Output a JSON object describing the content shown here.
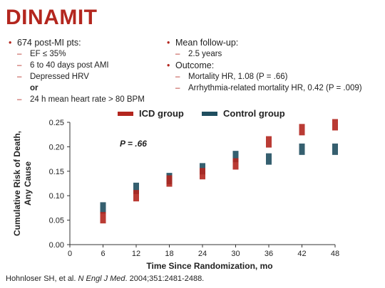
{
  "slide": {
    "title": "DINAMIT",
    "left_bullets": [
      {
        "level": 1,
        "text": "674 post-MI pts:"
      },
      {
        "level": 2,
        "text": "EF ≤ 35%"
      },
      {
        "level": 2,
        "text": "6 to 40 days post AMI"
      },
      {
        "level": 2,
        "text": "Depressed HRV"
      },
      {
        "level": "or",
        "text": "or"
      },
      {
        "level": 2,
        "text": "24 h mean heart rate > 80 BPM"
      }
    ],
    "right_bullets": [
      {
        "level": 1,
        "text": "Mean follow-up:"
      },
      {
        "level": 2,
        "text": "2.5 years"
      },
      {
        "level": 1,
        "text": "Outcome:"
      },
      {
        "level": 2,
        "text": "Mortality HR, 1.08 (P = .66)"
      },
      {
        "level": 2,
        "text": "Arrhythmia-related mortality HR, 0.42 (P = .009)"
      }
    ],
    "source": {
      "authors": "Hohnloser SH, et al. ",
      "journal": "N Engl J Med",
      "details": ". 2004;351:2481-2488."
    }
  },
  "colors": {
    "accent": "#b3261e",
    "icd": "#b3261e",
    "control": "#1f4e5f"
  },
  "chart_data": {
    "type": "line",
    "xlabel": "Time Since Randomization, mo",
    "ylabel_lines": [
      "Cumulative Risk of Death,",
      "Any Cause"
    ],
    "annotation": "P = .66",
    "x": [
      6,
      12,
      18,
      24,
      30,
      36,
      42,
      48
    ],
    "x_ticks": [
      0,
      6,
      12,
      18,
      24,
      30,
      36,
      42,
      48
    ],
    "y_ticks": [
      "0.00",
      "0.05",
      "0.10",
      "0.15",
      "0.20",
      "0.25"
    ],
    "xlim": [
      0,
      48
    ],
    "ylim": [
      0,
      0.25
    ],
    "grid": false,
    "legend_position": "top",
    "series": [
      {
        "name": "ICD group",
        "values": [
          0.055,
          0.1,
          0.13,
          0.145,
          0.165,
          0.21,
          0.235,
          0.245
        ]
      },
      {
        "name": "Control group",
        "values": [
          0.075,
          0.115,
          0.135,
          0.155,
          0.18,
          0.175,
          0.195,
          0.195
        ]
      }
    ]
  }
}
